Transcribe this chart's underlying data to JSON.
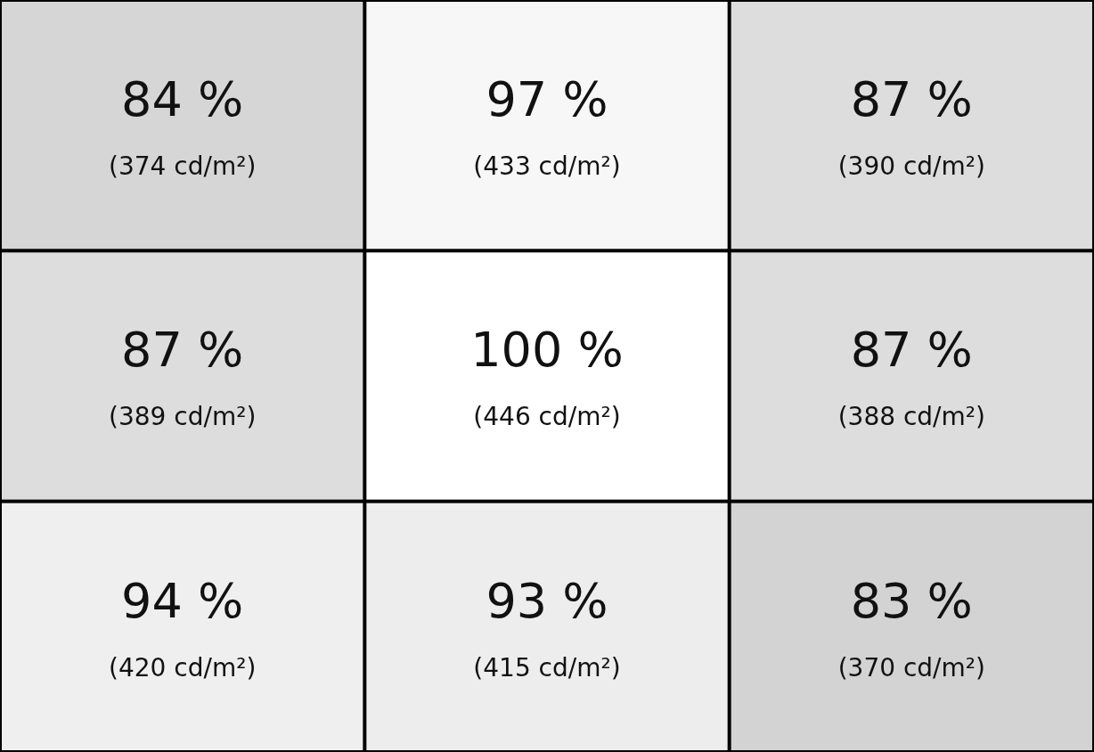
{
  "chart_data": {
    "type": "heatmap",
    "categories": [
      null,
      null,
      null
    ],
    "y_categories": [
      null,
      null,
      null
    ],
    "cells": [
      [
        84,
        97,
        87
      ],
      [
        87,
        100,
        87
      ],
      [
        94,
        93,
        83
      ]
    ],
    "cell_labels": [
      [
        "84 %",
        "97 %",
        "87 %"
      ],
      [
        "87 %",
        "100 %",
        "87 %"
      ],
      [
        "94 %",
        "93 %",
        "83 %"
      ]
    ],
    "annotations": [
      "(374 cd/m²)",
      "(433 cd/m²)",
      "(390 cd/m²)",
      "(389 cd/m²)",
      "(446 cd/m²)",
      "(388 cd/m²)",
      "(420 cd/m²)",
      "(415 cd/m²)",
      "(370 cd/m²)"
    ]
  }
}
